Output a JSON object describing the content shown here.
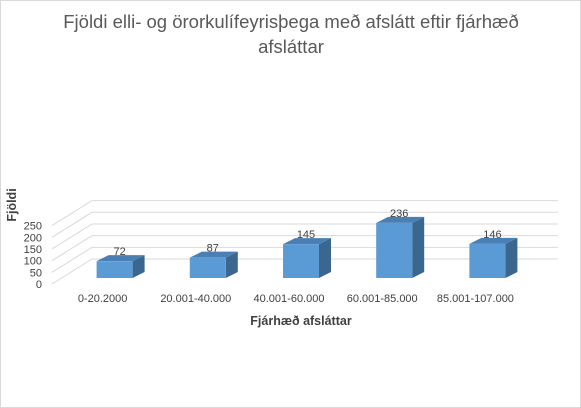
{
  "chart_data": {
    "type": "bar",
    "title": "Fjöldi elli-  og örorkulífeyrisþega með afslátt eftir fjárhæð afsláttar",
    "xlabel": "Fjárhæð afsláttar",
    "ylabel": "Fjöldi",
    "categories": [
      "0-20.2000",
      "20.001-40.000",
      "40.001-60.000",
      "60.001-85.000",
      "85.001-107.000"
    ],
    "values": [
      72,
      87,
      145,
      236,
      146
    ],
    "data_labels": [
      "72",
      "87",
      "145",
      "236",
      "146"
    ],
    "ylim": [
      0,
      250
    ],
    "yticks": [
      0,
      50,
      100,
      150,
      200,
      250
    ],
    "grid": true,
    "style": "3d-column",
    "colors": {
      "bar_front": "#5b9bd5",
      "bar_side": "#3a6690",
      "bar_top": "#4a7fb3",
      "grid": "#d9d9d9",
      "text": "#595959"
    }
  }
}
